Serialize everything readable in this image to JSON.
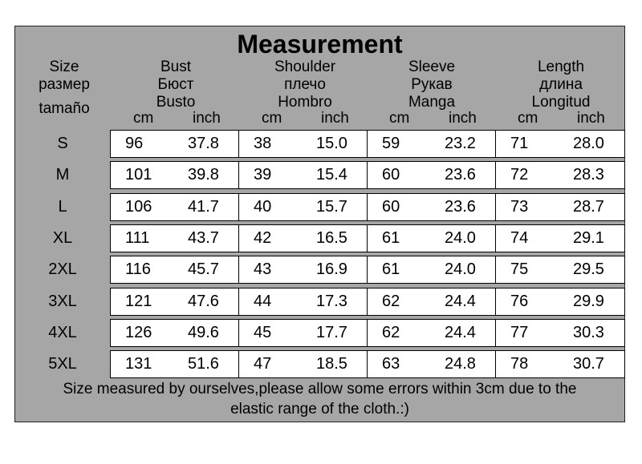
{
  "title": "Measurement",
  "headers": {
    "size": [
      "Size",
      "размер",
      "tamaño"
    ],
    "groups": [
      {
        "name": [
          "Bust",
          "Бюст",
          "Busto"
        ]
      },
      {
        "name": [
          "Shoulder",
          "плечо",
          "Hombro"
        ]
      },
      {
        "name": [
          "Sleeve",
          "Рукав",
          "Manga"
        ]
      },
      {
        "name": [
          "Length",
          "длина",
          "Longitud"
        ]
      }
    ],
    "unit_cm": "cm",
    "unit_inch": "inch"
  },
  "rows": [
    {
      "size": "S",
      "values": [
        "96",
        "37.8",
        "38",
        "15.0",
        "59",
        "23.2",
        "71",
        "28.0"
      ]
    },
    {
      "size": "M",
      "values": [
        "101",
        "39.8",
        "39",
        "15.4",
        "60",
        "23.6",
        "72",
        "28.3"
      ]
    },
    {
      "size": "L",
      "values": [
        "106",
        "41.7",
        "40",
        "15.7",
        "60",
        "23.6",
        "73",
        "28.7"
      ]
    },
    {
      "size": "XL",
      "values": [
        "111",
        "43.7",
        "42",
        "16.5",
        "61",
        "24.0",
        "74",
        "29.1"
      ]
    },
    {
      "size": "2XL",
      "values": [
        "116",
        "45.7",
        "43",
        "16.9",
        "61",
        "24.0",
        "75",
        "29.5"
      ]
    },
    {
      "size": "3XL",
      "values": [
        "121",
        "47.6",
        "44",
        "17.3",
        "62",
        "24.4",
        "76",
        "29.9"
      ]
    },
    {
      "size": "4XL",
      "values": [
        "126",
        "49.6",
        "45",
        "17.7",
        "62",
        "24.4",
        "77",
        "30.3"
      ]
    },
    {
      "size": "5XL",
      "values": [
        "131",
        "51.6",
        "47",
        "18.5",
        "63",
        "24.8",
        "78",
        "30.7"
      ]
    }
  ],
  "note": [
    "Size measured by ourselves,please allow some errors within 3cm due to the",
    "elastic range of the cloth.:)"
  ],
  "colors": {
    "background": "#a6a6a6",
    "cell": "#ffffff",
    "border": "#000000"
  }
}
